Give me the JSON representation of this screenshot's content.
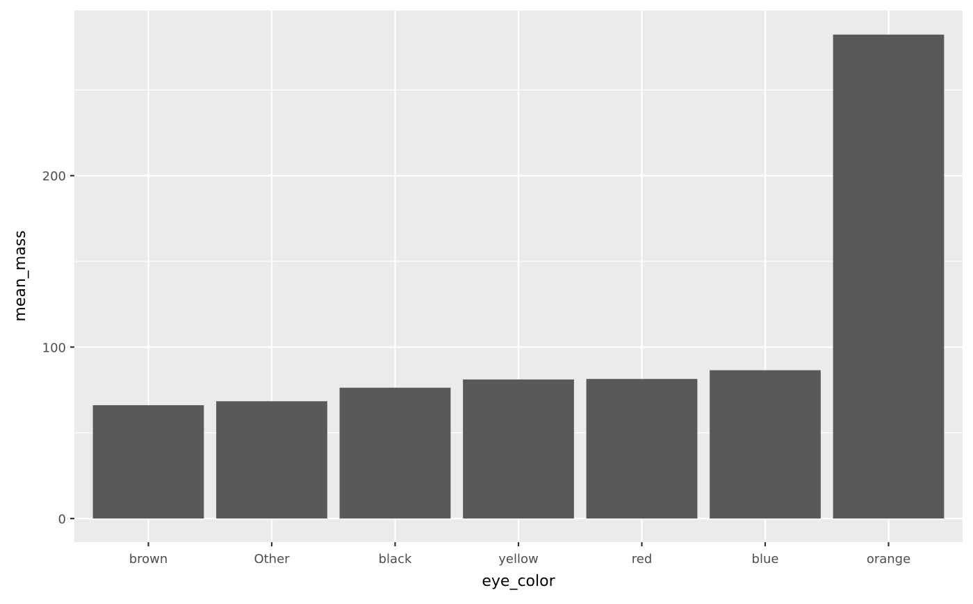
{
  "chart_data": {
    "type": "bar",
    "title": "",
    "xlabel": "eye_color",
    "ylabel": "mean_mass",
    "categories": [
      "brown",
      "Other",
      "black",
      "yellow",
      "red",
      "blue",
      "orange"
    ],
    "values": [
      66.1,
      68.4,
      76.3,
      81.1,
      81.4,
      86.5,
      282.3
    ],
    "ylim": [
      -13.8,
      296.4
    ],
    "yticks": [
      0,
      100,
      200
    ],
    "yminor": [
      50,
      150,
      250
    ],
    "grid": true,
    "colors": {
      "bar": "#595959",
      "panel": "#ebebeb",
      "grid": "#ffffff"
    }
  }
}
